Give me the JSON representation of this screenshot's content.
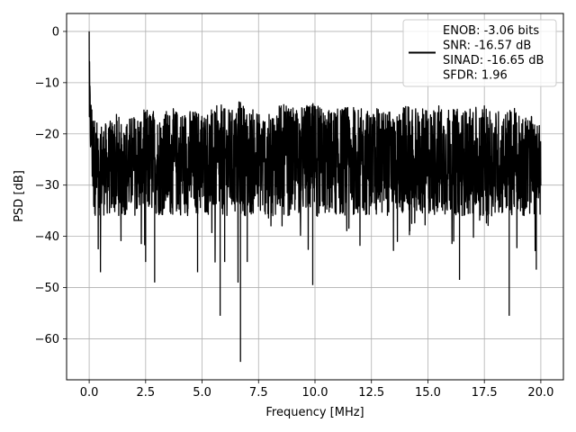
{
  "chart_data": {
    "type": "line",
    "title": "",
    "xlabel": "Frequency [MHz]",
    "ylabel": "PSD [dB]",
    "xlim": [
      -1.0,
      21.0
    ],
    "ylim": [
      -68,
      3.5
    ],
    "x_ticks": [
      0.0,
      2.5,
      5.0,
      7.5,
      10.0,
      12.5,
      15.0,
      17.5,
      20.0
    ],
    "x_tick_labels": [
      "0.0",
      "2.5",
      "5.0",
      "7.5",
      "10.0",
      "12.5",
      "15.0",
      "17.5",
      "20.0"
    ],
    "y_ticks": [
      0,
      -10,
      -20,
      -30,
      -40,
      -50,
      -60
    ],
    "y_tick_labels": [
      "0",
      "−10",
      "−20",
      "−30",
      "−40",
      "−50",
      "−60"
    ],
    "grid": true,
    "legend_position": "top-right",
    "series": [
      {
        "name": "ENOB: -3.06 bits\nSNR: -16.57 dB\nSINAD: -16.65 dB\nSFDR: 1.96",
        "color": "#000000",
        "description": "noise-like PSD trace, mostly between -35 and -15 dB with deep notches",
        "x": [
          0.0,
          0.02,
          0.05,
          0.1,
          0.15,
          0.2,
          0.3,
          0.5,
          0.8,
          1.0,
          1.2,
          1.5,
          2.0,
          2.5,
          2.9,
          3.0,
          3.5,
          4.0,
          4.8,
          5.0,
          5.5,
          5.8,
          6.0,
          6.5,
          6.7,
          7.0,
          7.5,
          8.0,
          8.5,
          9.0,
          9.5,
          9.9,
          10.0,
          10.5,
          11.0,
          11.5,
          12.0,
          12.5,
          13.0,
          13.5,
          14.0,
          14.5,
          15.0,
          15.5,
          16.0,
          16.4,
          16.5,
          17.0,
          17.5,
          18.0,
          18.6,
          19.0,
          19.5,
          19.8,
          20.0
        ],
        "y_upper": [
          0.0,
          -7,
          -11,
          -13,
          -14,
          -16,
          -17,
          -17,
          -18,
          -17,
          -16,
          -17,
          -16,
          -15,
          -15,
          -16,
          -15,
          -15,
          -15,
          -15,
          -15,
          -14,
          -15,
          -15,
          -13,
          -15,
          -15,
          -15,
          -14,
          -15,
          -14,
          -14,
          -14,
          -15,
          -15,
          -14,
          -15,
          -15,
          -15,
          -15,
          -14,
          -15,
          -15,
          -14,
          -15,
          -15,
          -15,
          -15,
          -14,
          -15,
          -15,
          -15,
          -16,
          -18,
          -18
        ],
        "y_lower": [
          -21,
          -25,
          -25,
          -26,
          -34,
          -36,
          -39,
          -47,
          -38,
          -42,
          -38,
          -44,
          -38,
          -45,
          -49,
          -40,
          -38,
          -40,
          -47,
          -38,
          -42,
          -55.5,
          -45,
          -40,
          -64.5,
          -45,
          -41,
          -38,
          -40,
          -41,
          -40,
          -49.5,
          -38,
          -40,
          -42,
          -41,
          -43,
          -40,
          -42,
          -43,
          -41,
          -40,
          -38,
          -41,
          -40,
          -48.5,
          -40,
          -41,
          -38,
          -40,
          -55.5,
          -42,
          -40,
          -46.5,
          -35
        ]
      }
    ]
  }
}
